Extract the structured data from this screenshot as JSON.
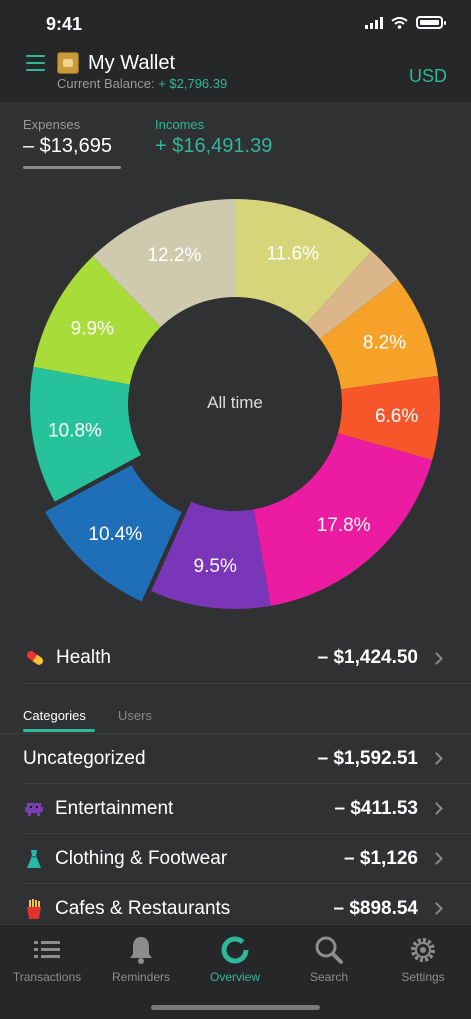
{
  "status": {
    "time": "9:41"
  },
  "header": {
    "title": "My Wallet",
    "balance_label": "Current Balance:",
    "balance_value": "+ $2,796.39",
    "currency": "USD"
  },
  "totals": {
    "expenses_label": "Expenses",
    "expenses_value": "– $13,695",
    "incomes_label": "Incomes",
    "incomes_value": "+ $16,491.39"
  },
  "chart_data": {
    "type": "pie",
    "center_label": "All time",
    "slices": [
      {
        "label": "11.6%",
        "value": 11.6,
        "color": "#d6d57a"
      },
      {
        "label": "",
        "value": 3.0,
        "color": "#dbb68a"
      },
      {
        "label": "8.2%",
        "value": 8.2,
        "color": "#f6a128"
      },
      {
        "label": "6.6%",
        "value": 6.6,
        "color": "#f7552a"
      },
      {
        "label": "17.8%",
        "value": 17.8,
        "color": "#ec1ca2"
      },
      {
        "label": "9.5%",
        "value": 9.5,
        "color": "#7a36b8"
      },
      {
        "label": "10.4%",
        "value": 10.4,
        "color": "#1f6fb8",
        "exploded": true
      },
      {
        "label": "10.8%",
        "value": 10.8,
        "color": "#25c29b"
      },
      {
        "label": "9.9%",
        "value": 9.9,
        "color": "#a7dc39"
      },
      {
        "label": "12.2%",
        "value": 12.2,
        "color": "#cfc9ae"
      }
    ]
  },
  "selected": {
    "icon": "pill-icon",
    "label": "Health",
    "amount": "– $1,424.50"
  },
  "tabs": {
    "categories": "Categories",
    "users": "Users"
  },
  "categories": [
    {
      "icon": "",
      "label": "Uncategorized",
      "amount": "– $1,592.51"
    },
    {
      "icon": "alien-monster-icon",
      "label": "Entertainment",
      "amount": "– $411.53"
    },
    {
      "icon": "dress-icon",
      "label": "Clothing & Footwear",
      "amount": "– $1,126"
    },
    {
      "icon": "fries-icon",
      "label": "Cafes & Restaurants",
      "amount": "– $898.54"
    }
  ],
  "tabbar": {
    "transactions": "Transactions",
    "reminders": "Reminders",
    "overview": "Overview",
    "search": "Search",
    "settings": "Settings"
  }
}
